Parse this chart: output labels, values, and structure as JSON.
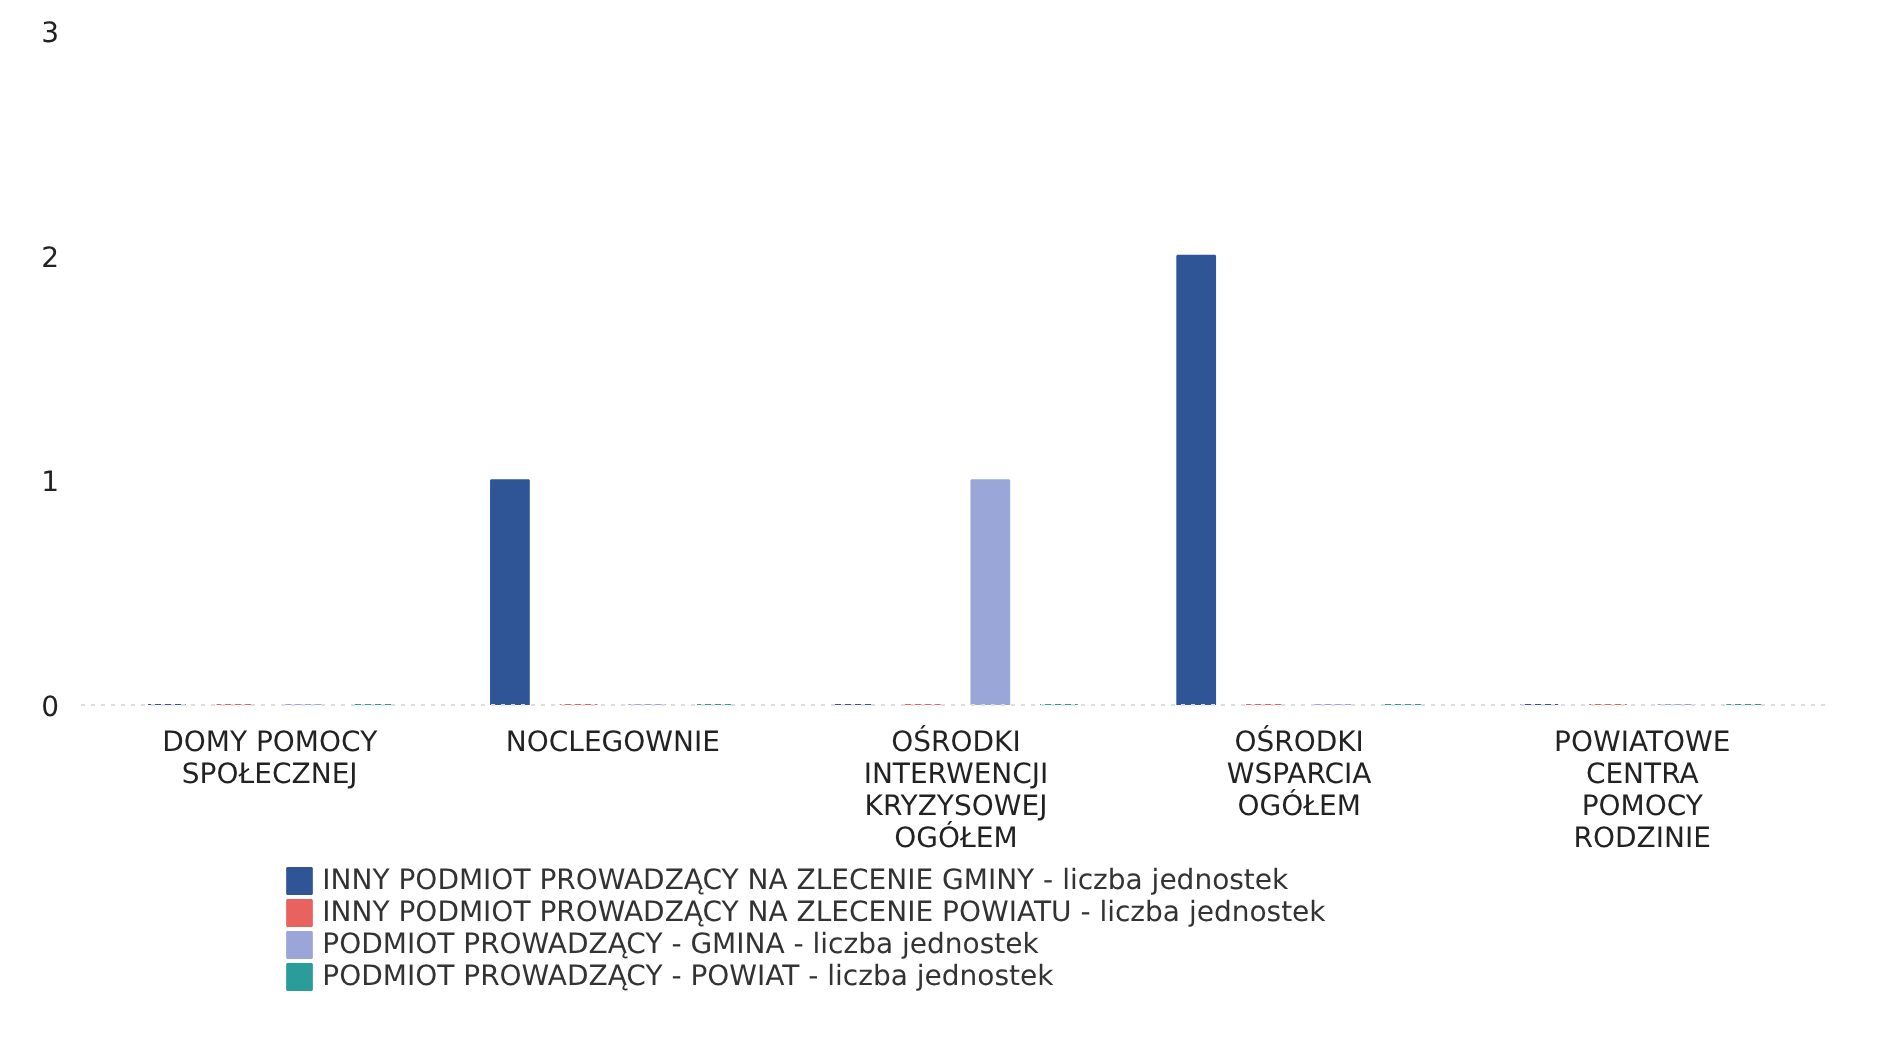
{
  "chart_data": {
    "type": "bar",
    "categories": [
      "DOMY POMOCY SPOŁECZNEJ",
      "NOCLEGOWNIE",
      "OŚRODKI INTERWENCJI KRYZYSOWEJ OGÓŁEM",
      "OŚRODKI WSPARCIA OGÓŁEM",
      "POWIATOWE CENTRA POMOCY RODZINIE"
    ],
    "series": [
      {
        "name": "INNY PODMIOT PROWADZĄCY NA ZLECENIE GMINY - liczba jednostek",
        "color": "#2f5597",
        "values": [
          0,
          1,
          0,
          2,
          0
        ]
      },
      {
        "name": "INNY PODMIOT PROWADZĄCY NA ZLECENIE POWIATU - liczba jednostek",
        "color": "#e8625e",
        "values": [
          0,
          0,
          0,
          0,
          0
        ]
      },
      {
        "name": "PODMIOT PROWADZĄCY - GMINA - liczba jednostek",
        "color": "#9aa5d8",
        "values": [
          0,
          0,
          1,
          0,
          0
        ]
      },
      {
        "name": "PODMIOT PROWADZĄCY - POWIAT - liczba jednostek",
        "color": "#2a9d9a",
        "values": [
          0,
          0,
          0,
          0,
          0
        ]
      }
    ],
    "ylim": [
      0,
      3
    ],
    "yticks": [
      0,
      1,
      2,
      3
    ],
    "grid": false,
    "legend": "bottom"
  }
}
